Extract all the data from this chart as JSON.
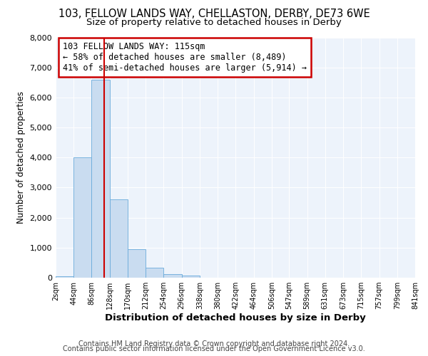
{
  "title": "103, FELLOW LANDS WAY, CHELLASTON, DERBY, DE73 6WE",
  "subtitle": "Size of property relative to detached houses in Derby",
  "xlabel": "Distribution of detached houses by size in Derby",
  "ylabel": "Number of detached properties",
  "bin_edges": [
    2,
    44,
    86,
    128,
    170,
    212,
    254,
    296,
    338,
    380,
    422,
    464,
    506,
    547,
    589,
    631,
    673,
    715,
    757,
    799,
    841
  ],
  "bin_counts": [
    50,
    4000,
    6600,
    2600,
    950,
    330,
    130,
    60,
    0,
    0,
    0,
    0,
    0,
    0,
    0,
    0,
    0,
    0,
    0,
    0
  ],
  "bar_color": "#c9dcf0",
  "bar_edge_color": "#6aabdb",
  "vline_x": 115,
  "vline_color": "#cc0000",
  "annotation_text": "103 FELLOW LANDS WAY: 115sqm\n← 58% of detached houses are smaller (8,489)\n41% of semi-detached houses are larger (5,914) →",
  "annotation_box_color": "#ffffff",
  "annotation_box_edge_color": "#cc0000",
  "ylim": [
    0,
    8000
  ],
  "yticks": [
    0,
    1000,
    2000,
    3000,
    4000,
    5000,
    6000,
    7000,
    8000
  ],
  "xtick_labels": [
    "2sqm",
    "44sqm",
    "86sqm",
    "128sqm",
    "170sqm",
    "212sqm",
    "254sqm",
    "296sqm",
    "338sqm",
    "380sqm",
    "422sqm",
    "464sqm",
    "506sqm",
    "547sqm",
    "589sqm",
    "631sqm",
    "673sqm",
    "715sqm",
    "757sqm",
    "799sqm",
    "841sqm"
  ],
  "footer_line1": "Contains HM Land Registry data © Crown copyright and database right 2024.",
  "footer_line2": "Contains public sector information licensed under the Open Government Licence v3.0.",
  "bg_color": "#edf3fb",
  "fig_bg_color": "#ffffff",
  "title_fontsize": 10.5,
  "subtitle_fontsize": 9.5,
  "xlabel_fontsize": 9.5,
  "ylabel_fontsize": 8.5,
  "annotation_fontsize": 8.5,
  "footer_fontsize": 7,
  "ytick_fontsize": 8,
  "xtick_fontsize": 7
}
